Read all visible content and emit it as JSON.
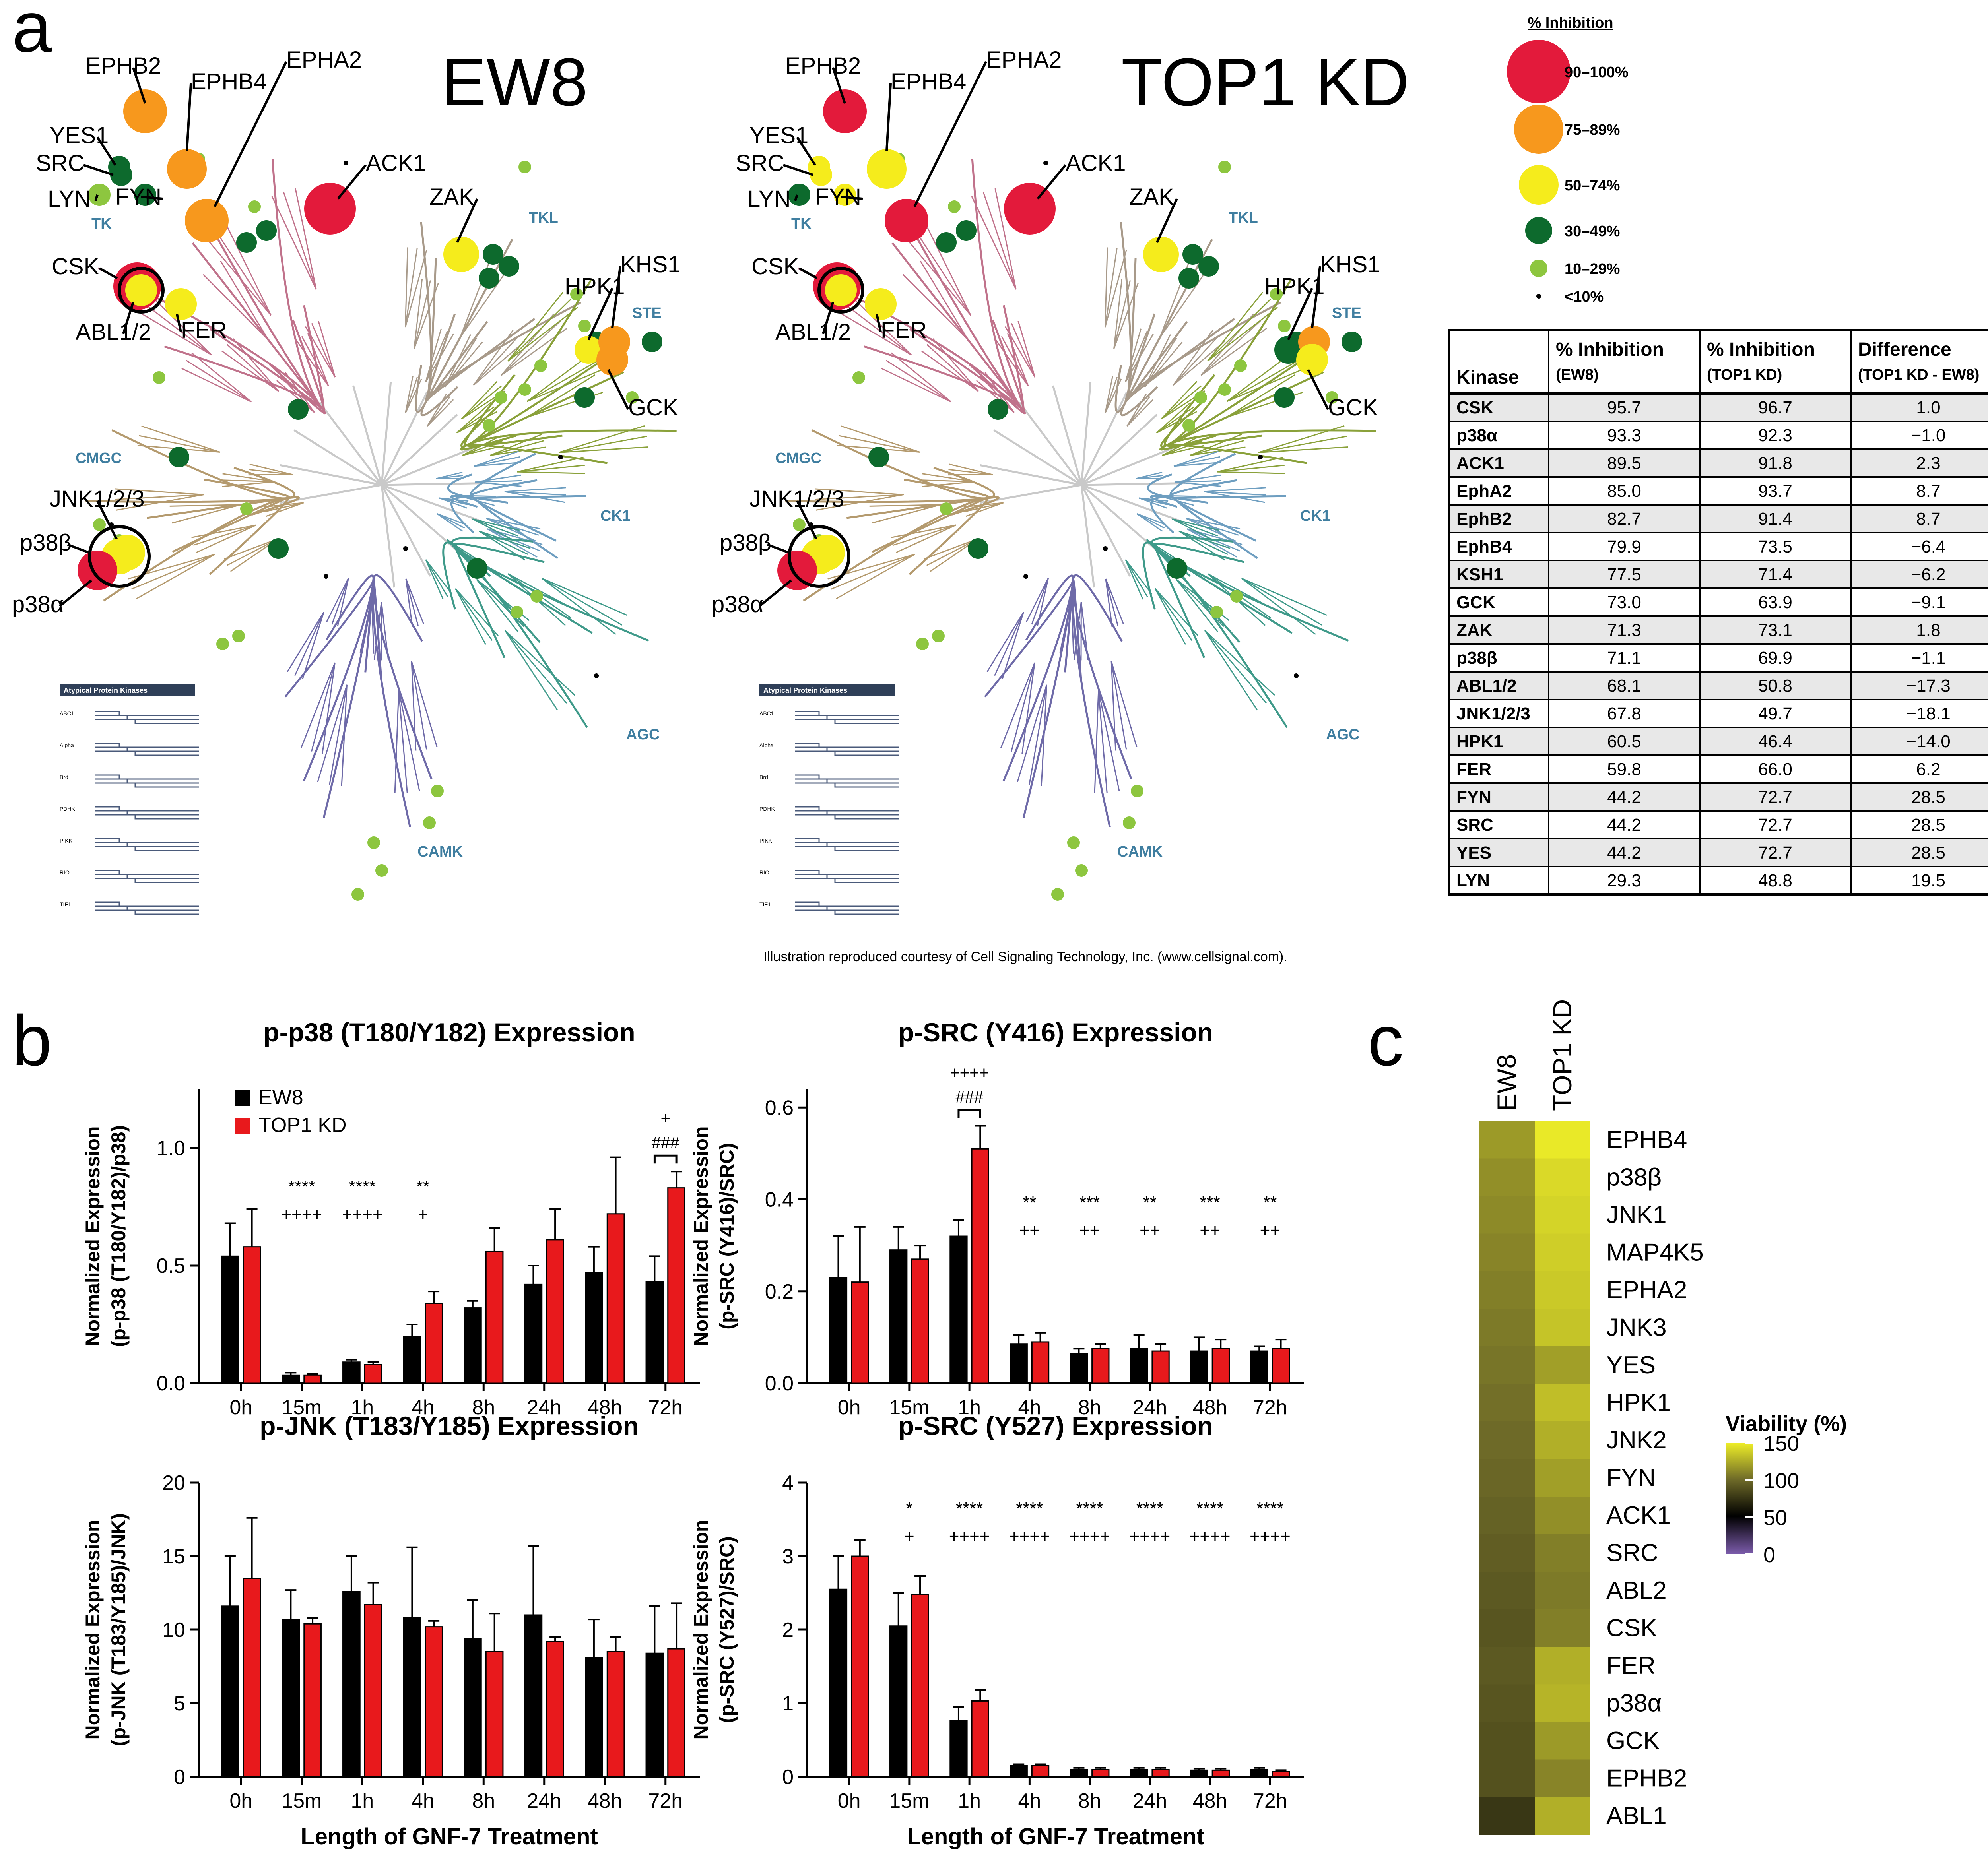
{
  "panel_labels": {
    "a": "a",
    "b": "b",
    "c": "c"
  },
  "kinome": {
    "ew8_title": "EW8",
    "top1_title": "TOP1 KD",
    "groups": {
      "tk": "TK",
      "tkl": "TKL",
      "ste": "STE",
      "ck1": "CK1",
      "agc": "AGC",
      "camk": "CAMK",
      "cmgc": "CMGC"
    },
    "ew8_labels": {
      "EPHB2": "EPHB2",
      "EPHB4": "EPHB4",
      "EPHA2": "EPHA2",
      "YES1": "YES1",
      "SRC": "SRC",
      "LYN": "LYN",
      "FYN": "FYN",
      "ACK1": "ACK1",
      "ZAK": "ZAK",
      "HPK1": "HPK1",
      "KHS1": "KHS1",
      "GCK": "GCK",
      "CSK": "CSK",
      "ABL": "ABL1/2",
      "FER": "FER",
      "JNK": "JNK1/2/3",
      "p38b": "p38β",
      "p38a": "p38α"
    },
    "top1_labels": {
      "EPHB2": "EPHB2",
      "EPHB4": "EPHB4",
      "EPHA2": "EPHA2",
      "YES1": "YES1",
      "SRC": "SRC",
      "LYN": "LYN",
      "FYN": "FYN",
      "ACK1": "ACK1",
      "ZAK": "ZAK",
      "HPK1": "HPK1",
      "KHS1": "KHS1",
      "GCK": "GCK",
      "CSK": "CSK",
      "ABL": "ABL1/2",
      "FER": "FER",
      "JNK": "JNK1/2/3",
      "p38b": "p38β",
      "p38a": "p38α"
    },
    "atypical": {
      "title": "Atypical Protein Kinases",
      "families": [
        "ABC1",
        "Alpha",
        "Brd",
        "PDHK",
        "PIKK",
        "RIO",
        "TIF1"
      ]
    }
  },
  "legend": {
    "title": "% Inhibition",
    "items": [
      {
        "label": "90–100%",
        "color": "#e31a3b"
      },
      {
        "label": "75–89%",
        "color": "#f7981d"
      },
      {
        "label": "50–74%",
        "color": "#f5ec1c"
      },
      {
        "label": "30–49%",
        "color": "#0d6a2d"
      },
      {
        "label": "10–29%",
        "color": "#8dc63f"
      },
      {
        "label": "<10%",
        "color": "#000000"
      }
    ]
  },
  "table": {
    "headers": [
      {
        "main": "Kinase",
        "sub": ""
      },
      {
        "main": "% Inhibition",
        "sub": "(EW8)"
      },
      {
        "main": "% Inhibition",
        "sub": "(TOP1 KD)"
      },
      {
        "main": "Difference",
        "sub": "(TOP1 KD - EW8)"
      }
    ],
    "rows": [
      [
        "CSK",
        "95.7",
        "96.7",
        "1.0"
      ],
      [
        "p38α",
        "93.3",
        "92.3",
        "−1.0"
      ],
      [
        "ACK1",
        "89.5",
        "91.8",
        "2.3"
      ],
      [
        "EphA2",
        "85.0",
        "93.7",
        "8.7"
      ],
      [
        "EphB2",
        "82.7",
        "91.4",
        "8.7"
      ],
      [
        "EphB4",
        "79.9",
        "73.5",
        "−6.4"
      ],
      [
        "KSH1",
        "77.5",
        "71.4",
        "−6.2"
      ],
      [
        "GCK",
        "73.0",
        "63.9",
        "−9.1"
      ],
      [
        "ZAK",
        "71.3",
        "73.1",
        "1.8"
      ],
      [
        "p38β",
        "71.1",
        "69.9",
        "−1.1"
      ],
      [
        "ABL1/2",
        "68.1",
        "50.8",
        "−17.3"
      ],
      [
        "JNK1/2/3",
        "67.8",
        "49.7",
        "−18.1"
      ],
      [
        "HPK1",
        "60.5",
        "46.4",
        "−14.0"
      ],
      [
        "FER",
        "59.8",
        "66.0",
        "6.2"
      ],
      [
        "FYN",
        "44.2",
        "72.7",
        "28.5"
      ],
      [
        "SRC",
        "44.2",
        "72.7",
        "28.5"
      ],
      [
        "YES",
        "44.2",
        "72.7",
        "28.5"
      ],
      [
        "LYN",
        "29.3",
        "48.8",
        "19.5"
      ]
    ]
  },
  "credit": "Illustration reproduced courtesy of Cell Signaling Technology, Inc. (www.cellsignal.com).",
  "chart_data": [
    {
      "type": "bar",
      "title": "p-p38 (T180/Y182) Expression",
      "ylabel": "Normalized Expression",
      "ylabel2": "(p-p38 (T180/Y182)/p38)",
      "xlabel": "",
      "categories": [
        "0h",
        "15m",
        "1h",
        "4h",
        "8h",
        "24h",
        "48h",
        "72h"
      ],
      "ylim": [
        0,
        1.25
      ],
      "yticks": [
        "0.0",
        "0.5",
        "1.0"
      ],
      "ytick_values": [
        0,
        0.5,
        1.0
      ],
      "series": [
        {
          "name": "EW8",
          "color": "#000000",
          "values": [
            0.54,
            0.035,
            0.09,
            0.2,
            0.32,
            0.42,
            0.47,
            0.43
          ],
          "err": [
            0.14,
            0.01,
            0.01,
            0.05,
            0.03,
            0.08,
            0.11,
            0.11
          ]
        },
        {
          "name": "TOP1 KD",
          "color": "#e8191c",
          "values": [
            0.58,
            0.035,
            0.08,
            0.34,
            0.56,
            0.61,
            0.72,
            0.83
          ],
          "err": [
            0.16,
            0.005,
            0.01,
            0.05,
            0.1,
            0.13,
            0.24,
            0.07
          ]
        }
      ],
      "annotations": [
        {
          "cat": "15m",
          "line1": "****",
          "line2": "++++"
        },
        {
          "cat": "1h",
          "line1": "****",
          "line2": "++++"
        },
        {
          "cat": "4h",
          "line1": "**",
          "line2": "+"
        }
      ],
      "bracket": {
        "cat": "72h",
        "top": "+",
        "label": "###"
      },
      "legend": [
        "EW8",
        "TOP1 KD"
      ]
    },
    {
      "type": "bar",
      "title": "p-SRC (Y416) Expression",
      "ylabel": "Normalized Expression",
      "ylabel2": "(p-SRC (Y416)/SRC)",
      "xlabel": "",
      "categories": [
        "0h",
        "15m",
        "1h",
        "4h",
        "8h",
        "24h",
        "48h",
        "72h"
      ],
      "ylim": [
        0,
        0.64
      ],
      "yticks": [
        "0.0",
        "0.2",
        "0.4",
        "0.6"
      ],
      "ytick_values": [
        0,
        0.2,
        0.4,
        0.6
      ],
      "series": [
        {
          "name": "EW8",
          "color": "#000000",
          "values": [
            0.23,
            0.29,
            0.32,
            0.085,
            0.065,
            0.075,
            0.07,
            0.07
          ],
          "err": [
            0.09,
            0.05,
            0.035,
            0.02,
            0.01,
            0.03,
            0.03,
            0.01
          ]
        },
        {
          "name": "TOP1 KD",
          "color": "#e8191c",
          "values": [
            0.22,
            0.27,
            0.51,
            0.09,
            0.075,
            0.07,
            0.075,
            0.075
          ],
          "err": [
            0.12,
            0.03,
            0.05,
            0.02,
            0.01,
            0.015,
            0.02,
            0.02
          ]
        }
      ],
      "annotations": [
        {
          "cat": "4h",
          "line1": "**",
          "line2": "++"
        },
        {
          "cat": "8h",
          "line1": "***",
          "line2": "++"
        },
        {
          "cat": "24h",
          "line1": "**",
          "line2": "++"
        },
        {
          "cat": "48h",
          "line1": "***",
          "line2": "++"
        },
        {
          "cat": "72h",
          "line1": "**",
          "line2": "++"
        }
      ],
      "bracket": {
        "cat": "1h",
        "top": "++++",
        "label": "###"
      }
    },
    {
      "type": "bar",
      "title": "p-JNK (T183/Y185) Expression",
      "ylabel": "Normalized Expression",
      "ylabel2": "(p-JNK (T183/Y185)/JNK)",
      "xlabel": "Length of GNF-7 Treatment",
      "categories": [
        "0h",
        "15m",
        "1h",
        "4h",
        "8h",
        "24h",
        "48h",
        "72h"
      ],
      "ylim": [
        0,
        20
      ],
      "yticks": [
        "0",
        "5",
        "10",
        "15",
        "20"
      ],
      "ytick_values": [
        0,
        5,
        10,
        15,
        20
      ],
      "series": [
        {
          "name": "EW8",
          "color": "#000000",
          "values": [
            11.6,
            10.7,
            12.6,
            10.8,
            9.4,
            11.0,
            8.1,
            8.4
          ],
          "err": [
            3.4,
            2.0,
            2.4,
            4.8,
            2.6,
            4.7,
            2.6,
            3.2
          ]
        },
        {
          "name": "TOP1 KD",
          "color": "#e8191c",
          "values": [
            13.5,
            10.4,
            11.7,
            10.2,
            8.5,
            9.2,
            8.5,
            8.7
          ],
          "err": [
            4.1,
            0.4,
            1.5,
            0.4,
            2.6,
            0.3,
            1.0,
            3.1
          ]
        }
      ],
      "annotations": []
    },
    {
      "type": "bar",
      "title": "p-SRC (Y527) Expression",
      "ylabel": "Normalized Expression",
      "ylabel2": "(p-SRC (Y527)/SRC)",
      "xlabel": "Length of GNF-7 Treatment",
      "categories": [
        "0h",
        "15m",
        "1h",
        "4h",
        "8h",
        "24h",
        "48h",
        "72h"
      ],
      "ylim": [
        0,
        4
      ],
      "yticks": [
        "0",
        "1",
        "2",
        "3",
        "4"
      ],
      "ytick_values": [
        0,
        1,
        2,
        3,
        4
      ],
      "series": [
        {
          "name": "EW8",
          "color": "#000000",
          "values": [
            2.55,
            2.05,
            0.77,
            0.15,
            0.1,
            0.1,
            0.09,
            0.1
          ],
          "err": [
            0.45,
            0.45,
            0.18,
            0.02,
            0.02,
            0.02,
            0.02,
            0.02
          ]
        },
        {
          "name": "TOP1 KD",
          "color": "#e8191c",
          "values": [
            3.0,
            2.48,
            1.03,
            0.15,
            0.1,
            0.1,
            0.09,
            0.07
          ],
          "err": [
            0.22,
            0.25,
            0.15,
            0.02,
            0.02,
            0.02,
            0.02,
            0.02
          ]
        }
      ],
      "annotations": [
        {
          "cat": "15m",
          "line1": "*",
          "line2": "+"
        },
        {
          "cat": "1h",
          "line1": "****",
          "line2": "++++"
        },
        {
          "cat": "4h",
          "line1": "****",
          "line2": "++++"
        },
        {
          "cat": "8h",
          "line1": "****",
          "line2": "++++"
        },
        {
          "cat": "24h",
          "line1": "****",
          "line2": "++++"
        },
        {
          "cat": "48h",
          "line1": "****",
          "line2": "++++"
        },
        {
          "cat": "72h",
          "line1": "****",
          "line2": "++++"
        }
      ]
    },
    {
      "type": "heatmap",
      "columns": [
        "EW8",
        "TOP1 KD"
      ],
      "rows": [
        "EPHB4",
        "p38β",
        "JNK1",
        "MAP4K5",
        "EPHA2",
        "JNK3",
        "YES",
        "HPK1",
        "JNK2",
        "FYN",
        "ACK1",
        "SRC",
        "ABL2",
        "CSK",
        "FER",
        "p38α",
        "GCK",
        "EPHB2",
        "ABL1"
      ],
      "values": [
        [
          118,
          148
        ],
        [
          114,
          142
        ],
        [
          112,
          140
        ],
        [
          110,
          138
        ],
        [
          108,
          136
        ],
        [
          106,
          134
        ],
        [
          104,
          120
        ],
        [
          102,
          132
        ],
        [
          100,
          126
        ],
        [
          98,
          120
        ],
        [
          96,
          114
        ],
        [
          94,
          108
        ],
        [
          92,
          106
        ],
        [
          90,
          108
        ],
        [
          92,
          126
        ],
        [
          90,
          128
        ],
        [
          88,
          118
        ],
        [
          88,
          110
        ],
        [
          76,
          126
        ]
      ],
      "colorbar": {
        "title": "Viability (%)",
        "ticks": [
          "150",
          "100",
          "50",
          "0"
        ],
        "tick_values": [
          150,
          100,
          50,
          0
        ],
        "range": [
          0,
          150
        ]
      }
    }
  ]
}
